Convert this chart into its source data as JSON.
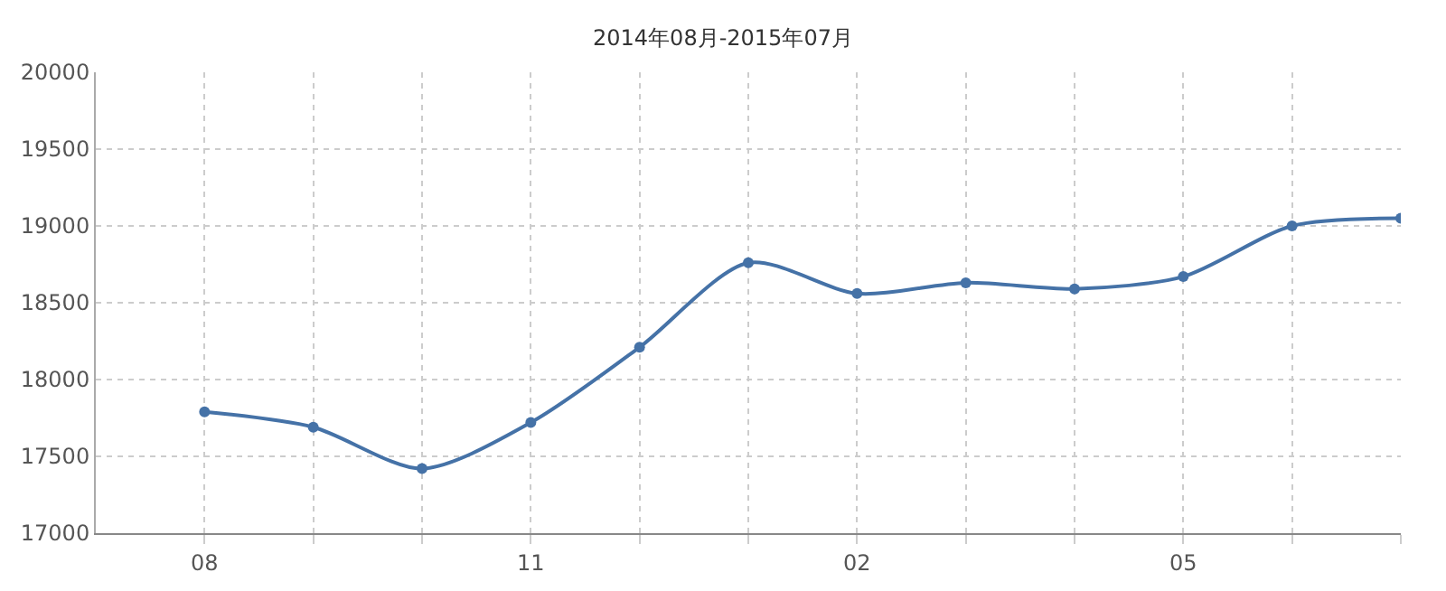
{
  "chart_data": {
    "type": "line",
    "title": "2014年08月-2015年07月",
    "categories": [
      "08",
      null,
      null,
      "11",
      null,
      null,
      "02",
      null,
      null,
      "05",
      null,
      null
    ],
    "series": [
      {
        "color": "#4572a7",
        "values": [
          17790,
          17690,
          17420,
          17720,
          18210,
          18760,
          18560,
          18630,
          18590,
          18670,
          19000,
          19050
        ]
      }
    ],
    "ylim": [
      17000,
      20000
    ],
    "yticks": [
      17000,
      17500,
      18000,
      18500,
      19000,
      19500,
      20000
    ],
    "grid": true,
    "marker": "circle",
    "line_style": "solid"
  }
}
